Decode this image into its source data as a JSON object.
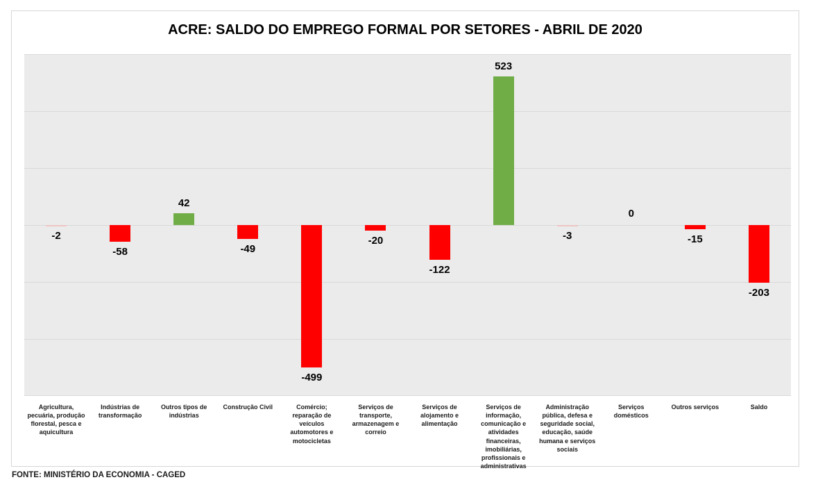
{
  "chart": {
    "title": "ACRE: SALDO DO EMPREGO FORMAL POR SETORES - ABRIL DE 2020",
    "source": "FONTE: MINISTÉRIO DA ECONOMIA - CAGED"
  },
  "colors": {
    "positive": "#70AD47",
    "negative": "#FF0000",
    "tiny_negative": "#EFC6C5",
    "plot_bg": "#EBEBEB",
    "gridline": "#D9D9D9",
    "frame_border": "#D6D6D6",
    "label_text": "#000000"
  },
  "chart_data": {
    "type": "bar",
    "title": "ACRE: SALDO DO EMPREGO FORMAL POR SETORES - ABRIL DE 2020",
    "categories": [
      "Agricultura, pecuária, produção florestal, pesca e aquicultura",
      "Indústrias de transformação",
      "Outros tipos de indústrias",
      "Construção Civil",
      "Comércio; reparação de veículos automotores e motocicletas",
      "Serviços de transporte, armazenagem e correio",
      "Serviços de alojamento e alimentação",
      "Serviços de informação, comunicação e atividades financeiras, imobiliárias, profissionais e administrativas",
      "Administração pública, defesa e seguridade social, educação, saúde humana e serviços sociais",
      "Serviços domésticos",
      "Outros serviços",
      "Saldo"
    ],
    "values": [
      -2,
      -58,
      42,
      -49,
      -499,
      -20,
      -122,
      523,
      -3,
      0,
      -15,
      -203
    ],
    "xlabel": "",
    "ylabel": "",
    "ylim": [
      -600,
      600
    ],
    "gridline_interval": 200,
    "grid": true,
    "legend": false,
    "data_labels": "outside-end",
    "bar_color_rule": "green if positive, red if negative",
    "source_note": "FONTE: MINISTÉRIO DA ECONOMIA - CAGED"
  }
}
